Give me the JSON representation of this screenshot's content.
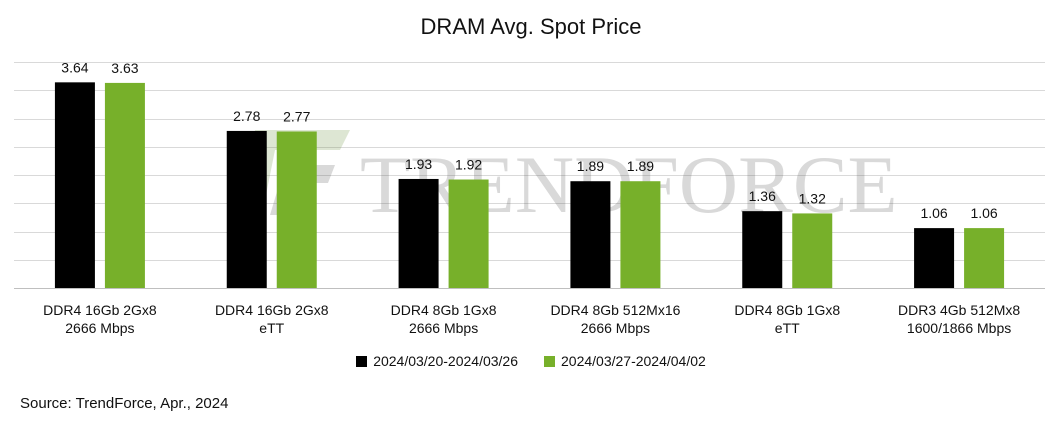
{
  "chart_data": {
    "type": "bar",
    "title": "DRAM Avg. Spot Price",
    "categories": [
      [
        "DDR4 16Gb 2Gx8",
        "2666 Mbps"
      ],
      [
        "DDR4 16Gb 2Gx8",
        "eTT"
      ],
      [
        "DDR4 8Gb 1Gx8",
        "2666 Mbps"
      ],
      [
        "DDR4 8Gb 512Mx16",
        "2666 Mbps"
      ],
      [
        "DDR4 8Gb 1Gx8",
        "eTT"
      ],
      [
        "DDR3 4Gb 512Mx8",
        "1600/1866 Mbps"
      ]
    ],
    "series": [
      {
        "name": "2024/03/20-2024/03/26",
        "color": "#000000",
        "values": [
          3.64,
          2.78,
          1.93,
          1.89,
          1.36,
          1.06
        ]
      },
      {
        "name": "2024/03/27-2024/04/02",
        "color": "#77b02a",
        "values": [
          3.63,
          2.77,
          1.92,
          1.89,
          1.32,
          1.06
        ]
      }
    ],
    "ylim": [
      0,
      4
    ],
    "grid": true,
    "legend_position": "bottom"
  },
  "watermark": "TRENDFORCE",
  "source": "Source: TrendForce, Apr., 2024"
}
